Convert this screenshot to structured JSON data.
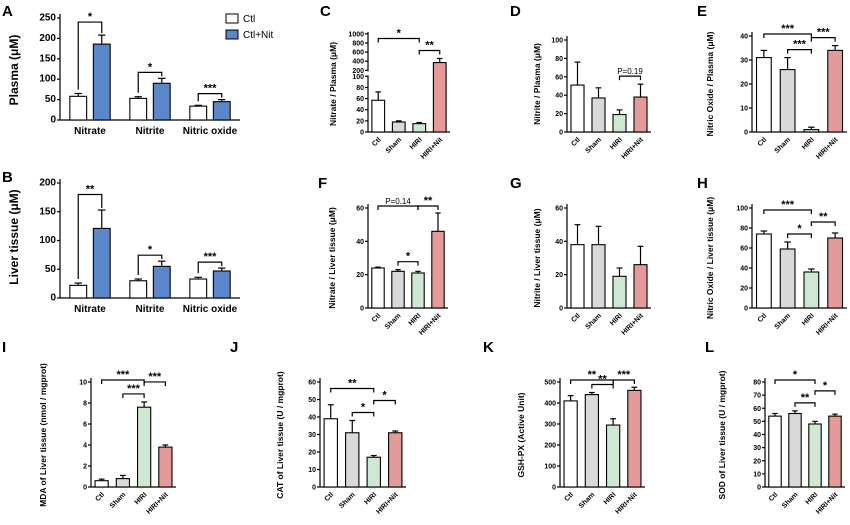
{
  "colors": {
    "Ctl": "#ffffff",
    "Sham": "#d9d9d9",
    "HIRI": "#cfe8d3",
    "HIRI+Nit": "#e59a9a",
    "Ctl+Nit": "#5b86c9"
  },
  "legend": [
    "Ctl",
    "Ctl+Nit"
  ],
  "chart_data": [
    {
      "id": "A",
      "type": "bar",
      "ylabel": "Plasma (μM)",
      "ylim": [
        0,
        250
      ],
      "ticks": [
        0,
        50,
        100,
        150,
        200,
        250
      ],
      "categories": [
        "Nitrate",
        "Nitrite",
        "Nitric oxide"
      ],
      "series": [
        {
          "name": "Ctl",
          "values": [
            58,
            53,
            34
          ],
          "err": [
            7,
            4,
            2
          ]
        },
        {
          "name": "Ctl+Nit",
          "values": [
            186,
            90,
            45
          ],
          "err": [
            22,
            12,
            5
          ]
        }
      ],
      "sig": [
        "*",
        "*",
        "***"
      ]
    },
    {
      "id": "B",
      "type": "bar",
      "ylabel": "Liver tissue (μM)",
      "ylim": [
        0,
        200
      ],
      "ticks": [
        0,
        50,
        100,
        150,
        200
      ],
      "categories": [
        "Nitrate",
        "Nitrite",
        "Nitric oxide"
      ],
      "series": [
        {
          "name": "Ctl",
          "values": [
            22,
            30,
            33
          ],
          "err": [
            4,
            3,
            3
          ]
        },
        {
          "name": "Ctl+Nit",
          "values": [
            121,
            55,
            47
          ],
          "err": [
            32,
            9,
            5
          ]
        }
      ],
      "sig": [
        "**",
        "*",
        "***"
      ]
    },
    {
      "id": "C",
      "type": "bar",
      "ylabel": "Nitrate / Plasma (μM)",
      "broken": true,
      "ticks_low": [
        0,
        20,
        40,
        60,
        80,
        100
      ],
      "ticks_high": [
        200,
        400,
        600,
        800,
        1000
      ],
      "categories": [
        "Ctl",
        "Sham",
        "HIRI",
        "HIRI+Nit"
      ],
      "values": [
        57,
        18,
        15,
        370
      ],
      "err": [
        15,
        2,
        2,
        90
      ],
      "sig": [
        {
          "a": 0,
          "b": 2,
          "t": "*"
        },
        {
          "a": 2,
          "b": 3,
          "t": "**"
        }
      ]
    },
    {
      "id": "D",
      "type": "bar",
      "ylabel": "Nitrite / Plasma (μM)",
      "ylim": [
        0,
        100
      ],
      "ticks": [
        0,
        20,
        40,
        60,
        80,
        100
      ],
      "categories": [
        "Ctl",
        "Sham",
        "HIRI",
        "HIRI+Nit"
      ],
      "values": [
        51,
        37,
        19,
        38
      ],
      "err": [
        25,
        11,
        5,
        14
      ],
      "sig": [
        {
          "a": 2,
          "b": 3,
          "t": "P=0.19"
        }
      ]
    },
    {
      "id": "E",
      "type": "bar",
      "ylabel": "Nitric Oxide / Plasma (μM)",
      "ylim": [
        0,
        40
      ],
      "ticks": [
        0,
        10,
        20,
        30,
        40
      ],
      "categories": [
        "Ctl",
        "Sham",
        "HIRI",
        "HIRI+Nit"
      ],
      "values": [
        31,
        26,
        1,
        34
      ],
      "err": [
        3,
        5,
        1,
        2
      ],
      "sig": [
        {
          "a": 0,
          "b": 2,
          "t": "***"
        },
        {
          "a": 1,
          "b": 2,
          "t": "***"
        },
        {
          "a": 2,
          "b": 3,
          "t": "***"
        }
      ]
    },
    {
      "id": "F",
      "type": "bar",
      "ylabel": "Nitrate / Liver tissue (μM)",
      "ylim": [
        0,
        60
      ],
      "ticks": [
        0,
        20,
        40,
        60
      ],
      "categories": [
        "Ctl",
        "Sham",
        "HIRI",
        "HIRI+Nit"
      ],
      "values": [
        24,
        22,
        21,
        46
      ],
      "err": [
        0.5,
        1,
        1,
        11
      ],
      "sig": [
        {
          "a": 0,
          "b": 2,
          "t": "P=0.14"
        },
        {
          "a": 1,
          "b": 2,
          "t": "*"
        },
        {
          "a": 2,
          "b": 3,
          "t": "**"
        }
      ]
    },
    {
      "id": "G",
      "type": "bar",
      "ylabel": "Nitrite / Liver tissue (μM)",
      "ylim": [
        0,
        60
      ],
      "ticks": [
        0,
        20,
        40,
        60
      ],
      "categories": [
        "Ctl",
        "Sham",
        "HIRI",
        "HIRI+Nit"
      ],
      "values": [
        38,
        38,
        19,
        26
      ],
      "err": [
        12,
        11,
        5,
        11
      ],
      "sig": []
    },
    {
      "id": "H",
      "type": "bar",
      "ylabel": "Nitric Oxide / Liver tissue (μM)",
      "ylim": [
        0,
        100
      ],
      "ticks": [
        0,
        20,
        40,
        60,
        80,
        100
      ],
      "categories": [
        "Ctl",
        "Sham",
        "HIRI",
        "HIRI+Nit"
      ],
      "values": [
        74,
        59,
        36,
        70
      ],
      "err": [
        3,
        7,
        3,
        5
      ],
      "sig": [
        {
          "a": 0,
          "b": 2,
          "t": "***"
        },
        {
          "a": 1,
          "b": 2,
          "t": "*"
        },
        {
          "a": 2,
          "b": 3,
          "t": "**"
        }
      ]
    },
    {
      "id": "I",
      "type": "bar",
      "ylabel": "MDA of Liver tissue (nmol / mgprot)",
      "ylim": [
        0,
        10
      ],
      "ticks": [
        0,
        2,
        4,
        6,
        8,
        10
      ],
      "categories": [
        "Ctl",
        "Sham",
        "HIRI",
        "HIRI+Nit"
      ],
      "values": [
        0.6,
        0.8,
        7.6,
        3.8
      ],
      "err": [
        0.15,
        0.3,
        0.5,
        0.2
      ],
      "sig": [
        {
          "a": 0,
          "b": 2,
          "t": "***"
        },
        {
          "a": 1,
          "b": 2,
          "t": "***"
        },
        {
          "a": 2,
          "b": 3,
          "t": "***"
        }
      ]
    },
    {
      "id": "J",
      "type": "bar",
      "ylabel": "CAT of Liver tissue (U / mgprot)",
      "ylim": [
        0,
        60
      ],
      "ticks": [
        0,
        10,
        20,
        30,
        40,
        50,
        60
      ],
      "categories": [
        "Ctl",
        "Sham",
        "HIRI",
        "HIRI+Nit"
      ],
      "values": [
        39,
        31,
        17,
        31
      ],
      "err": [
        8,
        7,
        1,
        1
      ],
      "sig": [
        {
          "a": 0,
          "b": 2,
          "t": "**"
        },
        {
          "a": 1,
          "b": 2,
          "t": "*"
        },
        {
          "a": 2,
          "b": 3,
          "t": "*"
        }
      ]
    },
    {
      "id": "K",
      "type": "bar",
      "ylabel": "GSH-PX (Active Unit)",
      "ylim": [
        0,
        500
      ],
      "ticks": [
        0,
        100,
        200,
        300,
        400,
        500
      ],
      "categories": [
        "Ctl",
        "Sham",
        "HIRI",
        "HIRI+Nit"
      ],
      "values": [
        410,
        440,
        295,
        460
      ],
      "err": [
        25,
        10,
        30,
        15
      ],
      "sig": [
        {
          "a": 0,
          "b": 2,
          "t": "**"
        },
        {
          "a": 1,
          "b": 2,
          "t": "**"
        },
        {
          "a": 2,
          "b": 3,
          "t": "***"
        }
      ]
    },
    {
      "id": "L",
      "type": "bar",
      "ylabel": "SOD of Liver tissue (U / mgprot)",
      "ylim": [
        0,
        80
      ],
      "ticks": [
        0,
        10,
        20,
        30,
        40,
        50,
        60,
        70,
        80
      ],
      "categories": [
        "Ctl",
        "Sham",
        "HIRI",
        "HIRI+Nit"
      ],
      "values": [
        54,
        56,
        48,
        54
      ],
      "err": [
        2,
        2,
        2,
        1.5
      ],
      "sig": [
        {
          "a": 0,
          "b": 2,
          "t": "*"
        },
        {
          "a": 1,
          "b": 2,
          "t": "**"
        },
        {
          "a": 2,
          "b": 3,
          "t": "*"
        }
      ]
    }
  ]
}
